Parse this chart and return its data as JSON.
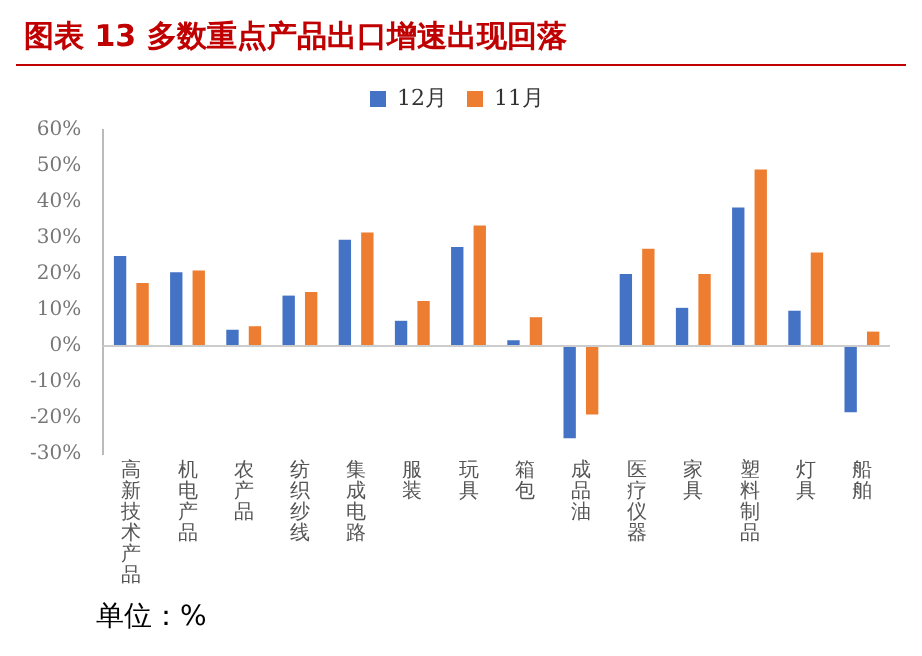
{
  "chart_data": {
    "type": "bar",
    "title": "图表 13 多数重点产品出口增速出现回落",
    "categories": [
      "高新技术产品",
      "机电产品",
      "农产品",
      "纺织纱线",
      "集成电路",
      "服装",
      "玩具",
      "箱包",
      "成品油",
      "医疗仪器",
      "家具",
      "塑料制品",
      "灯具",
      "船舶"
    ],
    "series": [
      {
        "name": "12月",
        "color": "#4472c4",
        "values": [
          25,
          20.5,
          4.5,
          14,
          29.5,
          7,
          27.5,
          1.6,
          -25.6,
          20,
          10.6,
          38.5,
          9.8,
          -18.4
        ]
      },
      {
        "name": "11月",
        "color": "#ed7d31",
        "values": [
          17.5,
          21,
          5.5,
          15,
          31.5,
          12.5,
          33.5,
          8,
          -19,
          27,
          20,
          49,
          26,
          4
        ]
      }
    ],
    "ylim": [
      -30,
      60
    ],
    "yticks": [
      {
        "value": -30,
        "label": "-30%"
      },
      {
        "value": -20,
        "label": "-20%"
      },
      {
        "value": -10,
        "label": "-10%"
      },
      {
        "value": 0,
        "label": "0%"
      },
      {
        "value": 10,
        "label": "10%"
      },
      {
        "value": 20,
        "label": "20%"
      },
      {
        "value": 30,
        "label": "30%"
      },
      {
        "value": 40,
        "label": "40%"
      },
      {
        "value": 50,
        "label": "50%"
      },
      {
        "value": 60,
        "label": "60%"
      }
    ],
    "grid": false,
    "legend": "top",
    "ref_lines": [
      {
        "axis": "y",
        "value": 0,
        "color": "#cccccc"
      }
    ],
    "annotations": [
      "单位：%"
    ]
  }
}
